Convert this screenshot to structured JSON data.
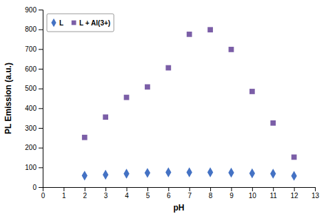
{
  "chart_data": {
    "type": "scatter",
    "xlabel": "pH",
    "ylabel": "PL Emission (a.u.)",
    "xlim": [
      0,
      13
    ],
    "ylim": [
      0,
      900
    ],
    "xticks": [
      0,
      1,
      2,
      3,
      4,
      5,
      6,
      7,
      8,
      9,
      10,
      11,
      12,
      13
    ],
    "yticks": [
      0,
      100,
      200,
      300,
      400,
      500,
      600,
      700,
      800,
      900
    ],
    "grid": false,
    "legend": "upper left",
    "series": [
      {
        "name": "L",
        "color": "#4472c4",
        "marker": "diamond",
        "x": [
          2,
          3,
          4,
          5,
          6,
          7,
          8,
          9,
          10,
          11,
          12
        ],
        "values": [
          58,
          63,
          68,
          72,
          75,
          75,
          75,
          73,
          70,
          68,
          57
        ]
      },
      {
        "name": "L + Al(3+)",
        "color": "#7b5ea7",
        "marker": "square",
        "x": [
          2,
          3,
          4,
          5,
          6,
          7,
          8,
          9,
          10,
          11,
          12
        ],
        "values": [
          252,
          355,
          455,
          508,
          605,
          775,
          798,
          698,
          485,
          325,
          152
        ]
      }
    ]
  }
}
